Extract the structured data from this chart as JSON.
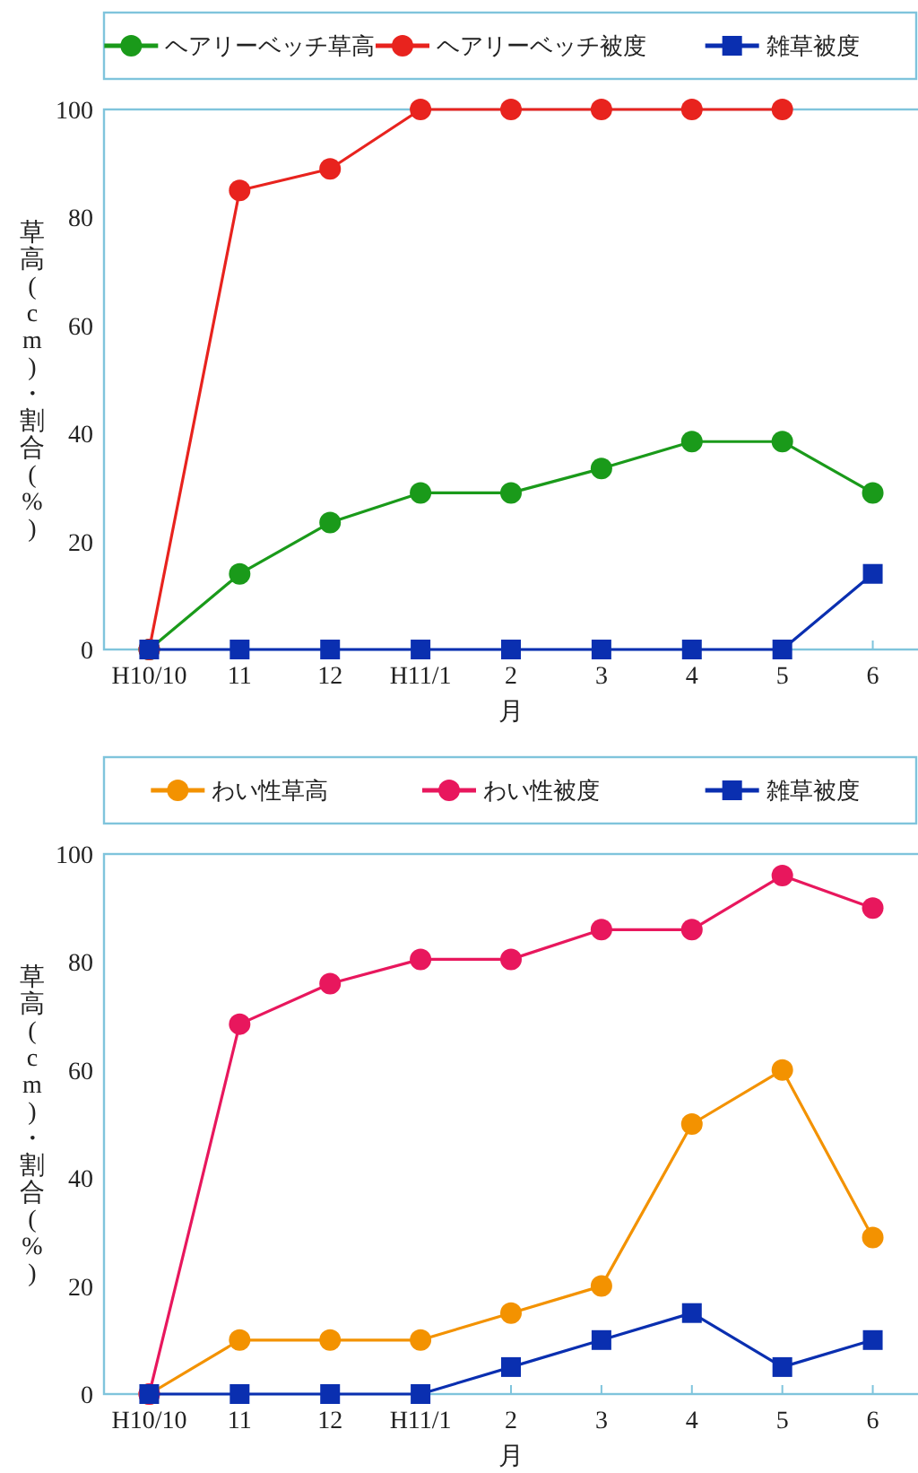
{
  "chart_data": [
    {
      "type": "line",
      "xlabel": "月",
      "ylabel": "草高(cm)・割合(%)",
      "categories": [
        "H10/10",
        "11",
        "12",
        "H11/1",
        "2",
        "3",
        "4",
        "5",
        "6"
      ],
      "ylim": [
        0,
        100
      ],
      "yticks": [
        0,
        20,
        40,
        60,
        80,
        100
      ],
      "legend": "top",
      "series": [
        {
          "name": "ヘアリーベッチ草高",
          "color": "#1a9a1a",
          "marker": "circle",
          "values": [
            0,
            14,
            23.5,
            29,
            29,
            33.5,
            38.5,
            38.5,
            29
          ]
        },
        {
          "name": "ヘアリーベッチ被度",
          "color": "#e8231e",
          "marker": "circle",
          "values": [
            0,
            85,
            89,
            100,
            100,
            100,
            100,
            100,
            null
          ]
        },
        {
          "name": "雑草被度",
          "color": "#0a2fb0",
          "marker": "square",
          "values": [
            0,
            0,
            0,
            0,
            0,
            0,
            0,
            0,
            14
          ]
        }
      ]
    },
    {
      "type": "line",
      "xlabel": "月",
      "ylabel": "草高(cm)・割合(%)",
      "categories": [
        "H10/10",
        "11",
        "12",
        "H11/1",
        "2",
        "3",
        "4",
        "5",
        "6"
      ],
      "ylim": [
        0,
        100
      ],
      "yticks": [
        0,
        20,
        40,
        60,
        80,
        100
      ],
      "legend": "top",
      "series": [
        {
          "name": "わい性草高",
          "color": "#f39200",
          "marker": "circle",
          "values": [
            0,
            10,
            10,
            10,
            15,
            20,
            50,
            60,
            29
          ]
        },
        {
          "name": "わい性被度",
          "color": "#e8175d",
          "marker": "circle",
          "values": [
            0,
            68.5,
            76,
            80.5,
            80.5,
            86,
            86,
            96,
            90
          ]
        },
        {
          "name": "雑草被度",
          "color": "#0a2fb0",
          "marker": "square",
          "values": [
            0,
            0,
            0,
            0,
            5,
            10,
            15,
            5,
            10
          ]
        }
      ]
    }
  ]
}
